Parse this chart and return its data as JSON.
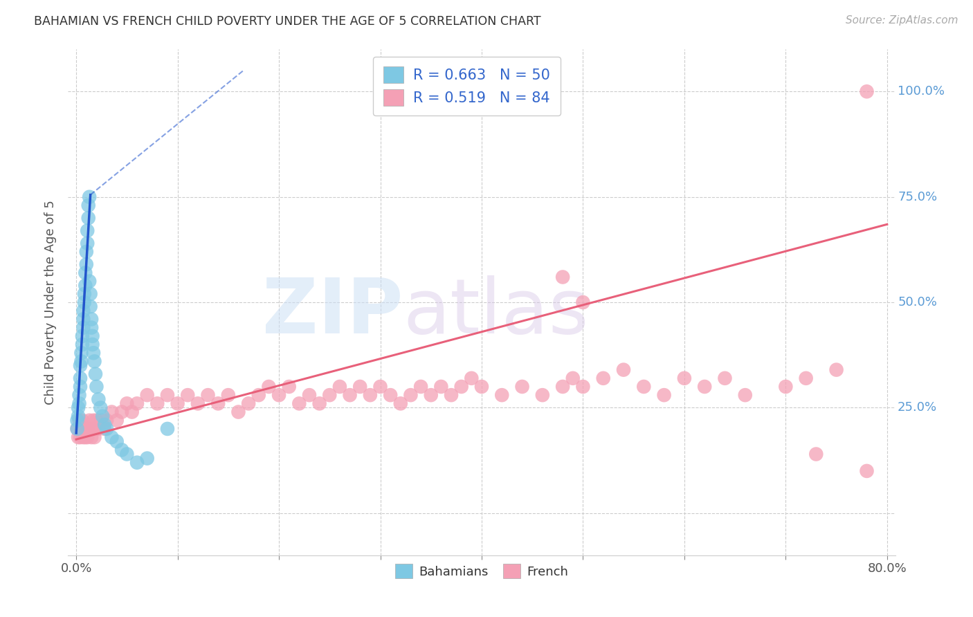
{
  "title": "BAHAMIAN VS FRENCH CHILD POVERTY UNDER THE AGE OF 5 CORRELATION CHART",
  "source": "Source: ZipAtlas.com",
  "ylabel": "Child Poverty Under the Age of 5",
  "xlim": [
    -0.008,
    0.808
  ],
  "ylim": [
    -0.1,
    1.1
  ],
  "bahamian_color": "#7ec8e3",
  "french_color": "#f4a0b5",
  "trend_blue": "#2255cc",
  "trend_pink": "#e8607a",
  "grid_color": "#cccccc",
  "yticklabel_color": "#5b9bd5",
  "xticklabel_color": "#555555",
  "title_color": "#333333",
  "source_color": "#aaaaaa",
  "ylabel_color": "#555555",
  "blue_x": [
    0.001,
    0.001,
    0.002,
    0.002,
    0.003,
    0.003,
    0.004,
    0.004,
    0.004,
    0.005,
    0.005,
    0.006,
    0.006,
    0.007,
    0.007,
    0.007,
    0.008,
    0.008,
    0.009,
    0.009,
    0.01,
    0.01,
    0.011,
    0.011,
    0.012,
    0.012,
    0.013,
    0.013,
    0.014,
    0.014,
    0.015,
    0.015,
    0.016,
    0.016,
    0.017,
    0.018,
    0.019,
    0.02,
    0.022,
    0.024,
    0.026,
    0.028,
    0.03,
    0.035,
    0.04,
    0.045,
    0.05,
    0.06,
    0.07,
    0.09
  ],
  "blue_y": [
    0.2,
    0.22,
    0.23,
    0.25,
    0.26,
    0.28,
    0.3,
    0.32,
    0.35,
    0.36,
    0.38,
    0.4,
    0.42,
    0.44,
    0.46,
    0.48,
    0.5,
    0.52,
    0.54,
    0.57,
    0.59,
    0.62,
    0.64,
    0.67,
    0.7,
    0.73,
    0.75,
    0.55,
    0.52,
    0.49,
    0.46,
    0.44,
    0.42,
    0.4,
    0.38,
    0.36,
    0.33,
    0.3,
    0.27,
    0.25,
    0.23,
    0.21,
    0.2,
    0.18,
    0.17,
    0.15,
    0.14,
    0.12,
    0.13,
    0.2
  ],
  "french_x": [
    0.001,
    0.002,
    0.003,
    0.004,
    0.005,
    0.006,
    0.007,
    0.008,
    0.009,
    0.01,
    0.011,
    0.012,
    0.013,
    0.015,
    0.016,
    0.017,
    0.018,
    0.019,
    0.02,
    0.022,
    0.025,
    0.028,
    0.03,
    0.035,
    0.04,
    0.045,
    0.05,
    0.055,
    0.06,
    0.07,
    0.08,
    0.09,
    0.1,
    0.11,
    0.12,
    0.13,
    0.14,
    0.15,
    0.16,
    0.17,
    0.18,
    0.19,
    0.2,
    0.21,
    0.22,
    0.23,
    0.24,
    0.25,
    0.26,
    0.27,
    0.28,
    0.29,
    0.3,
    0.31,
    0.32,
    0.33,
    0.34,
    0.35,
    0.36,
    0.37,
    0.38,
    0.39,
    0.4,
    0.42,
    0.44,
    0.46,
    0.48,
    0.49,
    0.5,
    0.52,
    0.54,
    0.56,
    0.58,
    0.6,
    0.62,
    0.64,
    0.66,
    0.7,
    0.72,
    0.75,
    0.78,
    0.48,
    0.5,
    0.73,
    0.78
  ],
  "french_y": [
    0.2,
    0.18,
    0.22,
    0.18,
    0.2,
    0.22,
    0.18,
    0.2,
    0.18,
    0.2,
    0.18,
    0.2,
    0.22,
    0.18,
    0.2,
    0.22,
    0.18,
    0.2,
    0.22,
    0.2,
    0.22,
    0.2,
    0.22,
    0.24,
    0.22,
    0.24,
    0.26,
    0.24,
    0.26,
    0.28,
    0.26,
    0.28,
    0.26,
    0.28,
    0.26,
    0.28,
    0.26,
    0.28,
    0.24,
    0.26,
    0.28,
    0.3,
    0.28,
    0.3,
    0.26,
    0.28,
    0.26,
    0.28,
    0.3,
    0.28,
    0.3,
    0.28,
    0.3,
    0.28,
    0.26,
    0.28,
    0.3,
    0.28,
    0.3,
    0.28,
    0.3,
    0.32,
    0.3,
    0.28,
    0.3,
    0.28,
    0.3,
    0.32,
    0.3,
    0.32,
    0.34,
    0.3,
    0.28,
    0.32,
    0.3,
    0.32,
    0.28,
    0.3,
    0.32,
    0.34,
    0.1,
    0.56,
    0.5,
    0.14,
    1.0
  ],
  "pink_trend_x0": 0.0,
  "pink_trend_y0": 0.175,
  "pink_trend_x1": 0.8,
  "pink_trend_y1": 0.685,
  "blue_trend_solid_x0": 0.0,
  "blue_trend_solid_y0": 0.19,
  "blue_trend_solid_x1": 0.014,
  "blue_trend_solid_y1": 0.755,
  "blue_trend_dash_x0": 0.014,
  "blue_trend_dash_y0": 0.755,
  "blue_trend_dash_x1": 0.165,
  "blue_trend_dash_y1": 1.05,
  "xtick_positions": [
    0.0,
    0.1,
    0.2,
    0.3,
    0.4,
    0.5,
    0.6,
    0.7,
    0.8
  ],
  "ytick_positions": [
    0.0,
    0.25,
    0.5,
    0.75,
    1.0
  ]
}
